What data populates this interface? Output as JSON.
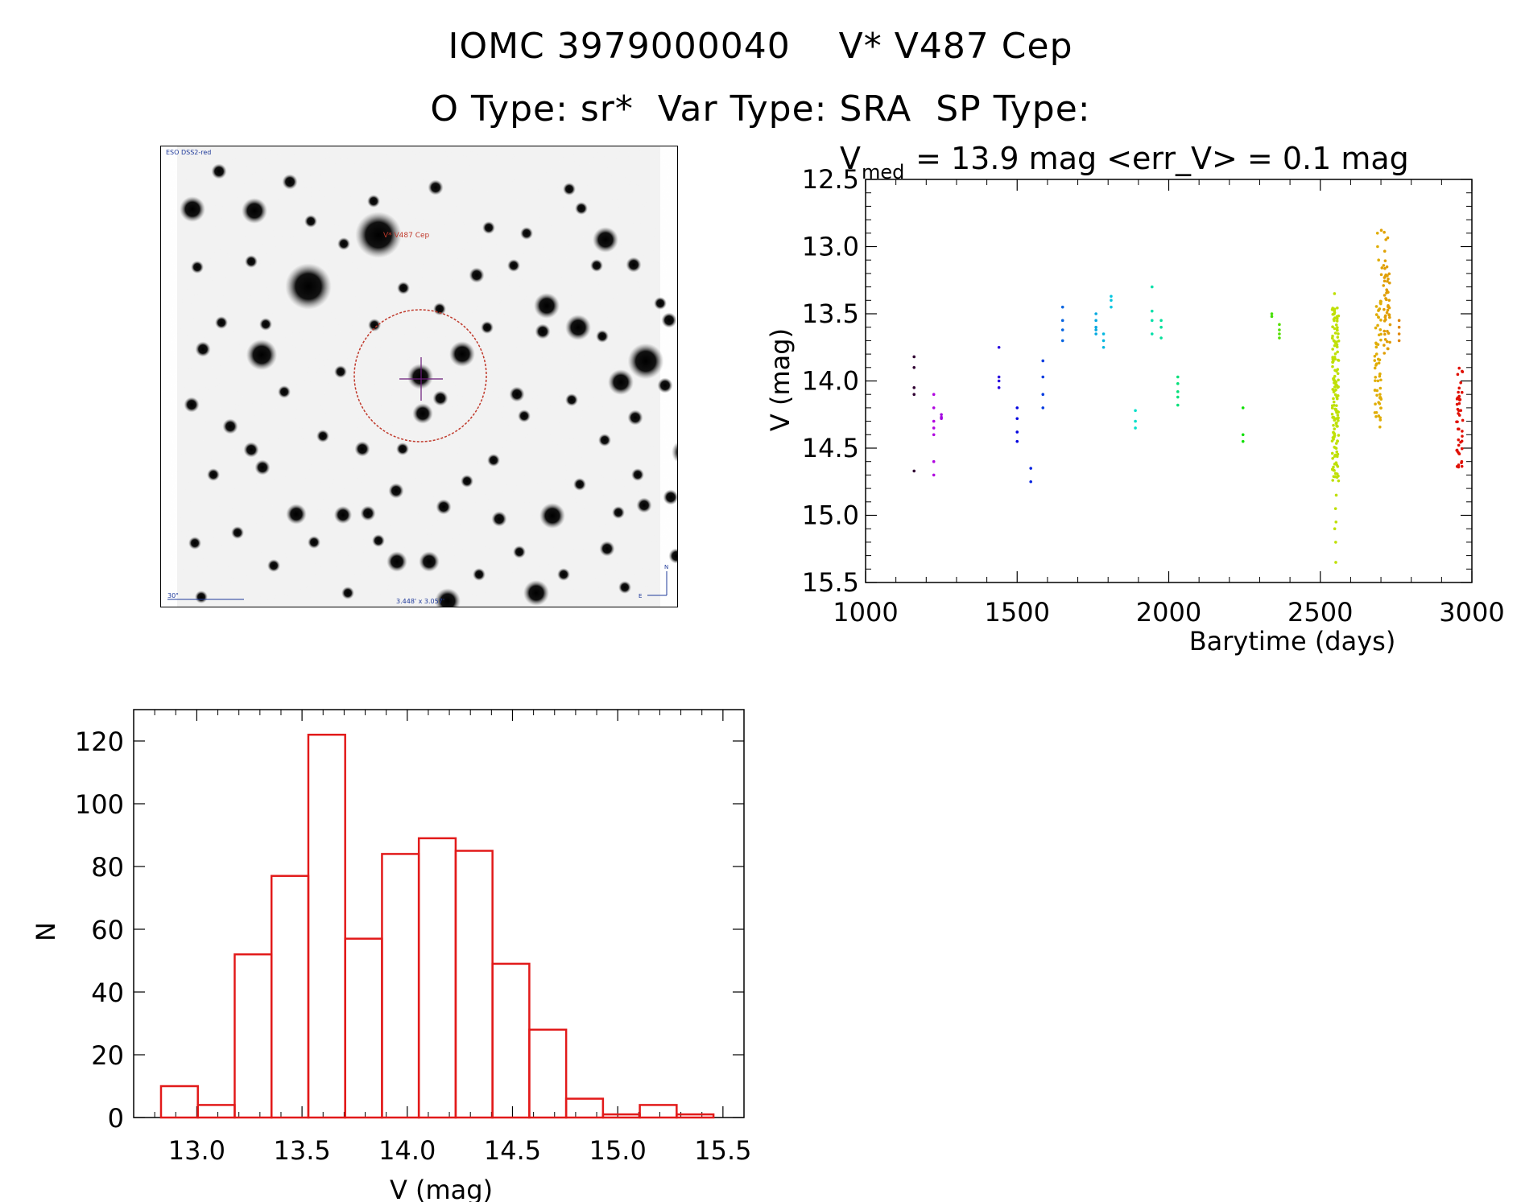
{
  "header": {
    "line1": "IOMC 3979000040    V* V487 Cep",
    "line2": "O Type: sr*  Var Type: SRA  SP Type:"
  },
  "sky_image": {
    "survey_label": "ESO DSS2-red",
    "target_label": "V* V487 Cep",
    "scale_label": "30\"",
    "fov_label": "3.448' x 3.057'",
    "north_label": "N",
    "east_label": "E",
    "circle_color": "#c0392b",
    "cross_color": "#6a1b7a",
    "label_color": "#1f3a9a"
  },
  "chart_data": [
    {
      "type": "scatter",
      "annotation_main": "V",
      "annotation_sub": "med",
      "annotation_rest": " = 13.9 mag <err_V> = 0.1 mag",
      "xlabel": "Barytime (days)",
      "ylabel": "V (mag)",
      "xlim": [
        1000,
        3000
      ],
      "ylim": [
        15.5,
        12.5
      ],
      "y_inverted": true,
      "xticks": [
        "1000",
        "1500",
        "2000",
        "2500",
        "3000"
      ],
      "yticks": [
        "12.5",
        "13.0",
        "13.5",
        "14.0",
        "14.5",
        "15.0",
        "15.5"
      ],
      "color_scale": "rainbow by time",
      "groups": [
        {
          "x": 1160,
          "y": [
            13.82,
            13.9,
            14.05,
            14.1,
            14.67
          ]
        },
        {
          "x": 1225,
          "y": [
            14.1,
            14.2,
            14.3,
            14.4,
            14.6,
            14.7,
            14.35
          ]
        },
        {
          "x": 1250,
          "y": [
            14.25,
            14.28,
            14.27
          ]
        },
        {
          "x": 1440,
          "y": [
            13.75,
            13.97,
            14.0,
            14.05
          ]
        },
        {
          "x": 1500,
          "y": [
            14.2,
            14.28,
            14.38,
            14.45
          ]
        },
        {
          "x": 1545,
          "y": [
            14.65,
            14.75
          ]
        },
        {
          "x": 1585,
          "y": [
            13.85,
            13.97,
            14.1,
            14.2
          ]
        },
        {
          "x": 1650,
          "y": [
            13.45,
            13.55,
            13.62,
            13.7
          ]
        },
        {
          "x": 1760,
          "y": [
            13.5,
            13.55,
            13.6,
            13.62,
            13.65
          ]
        },
        {
          "x": 1785,
          "y": [
            13.65,
            13.7,
            13.75
          ]
        },
        {
          "x": 1810,
          "y": [
            13.37,
            13.4,
            13.45
          ]
        },
        {
          "x": 1890,
          "y": [
            14.22,
            14.3,
            14.35
          ]
        },
        {
          "x": 1945,
          "y": [
            13.3,
            13.48,
            13.55,
            13.65
          ]
        },
        {
          "x": 1975,
          "y": [
            13.55,
            13.6,
            13.68
          ]
        },
        {
          "x": 2030,
          "y": [
            13.97,
            14.02,
            14.08,
            14.12,
            14.18
          ]
        },
        {
          "x": 2245,
          "y": [
            14.2,
            14.4,
            14.45
          ]
        },
        {
          "x": 2340,
          "y": [
            13.5,
            13.52
          ]
        },
        {
          "x": 2365,
          "y": [
            13.58,
            13.62,
            13.65,
            13.68
          ]
        },
        {
          "x": 2550,
          "y_range": [
            13.45,
            14.75
          ],
          "count": 150,
          "extra": [
            13.35,
            14.85,
            14.95,
            15.05,
            15.1,
            15.2,
            15.35
          ]
        },
        {
          "x": 2690,
          "y_range": [
            13.4,
            14.35
          ],
          "count": 60,
          "extra": [
            13.0,
            13.1,
            12.9
          ]
        },
        {
          "x": 2712,
          "y_range": [
            12.85,
            13.3
          ],
          "count": 12
        },
        {
          "x": 2720,
          "y_range": [
            13.1,
            13.8
          ],
          "count": 45
        },
        {
          "x": 2760,
          "y": [
            13.55,
            13.6,
            13.65,
            13.7
          ]
        },
        {
          "x": 2960,
          "y_range": [
            13.9,
            14.65
          ],
          "count": 45
        }
      ]
    },
    {
      "type": "bar",
      "subtype": "histogram",
      "xlabel": "V (mag)",
      "ylabel": "N",
      "xlim": [
        12.7,
        15.6
      ],
      "ylim": [
        0,
        130
      ],
      "xticks": [
        "13.0",
        "13.5",
        "14.0",
        "14.5",
        "15.0",
        "15.5"
      ],
      "yticks": [
        "0",
        "20",
        "40",
        "60",
        "80",
        "100",
        "120"
      ],
      "bar_color": "#e21a1a",
      "bin_edges": [
        12.83,
        13.005,
        13.18,
        13.355,
        13.53,
        13.705,
        13.88,
        14.055,
        14.23,
        14.405,
        14.58,
        14.755,
        14.93,
        15.105,
        15.28,
        15.455
      ],
      "counts": [
        10,
        4,
        52,
        77,
        122,
        57,
        84,
        89,
        85,
        49,
        28,
        6,
        1,
        4,
        1
      ]
    }
  ]
}
